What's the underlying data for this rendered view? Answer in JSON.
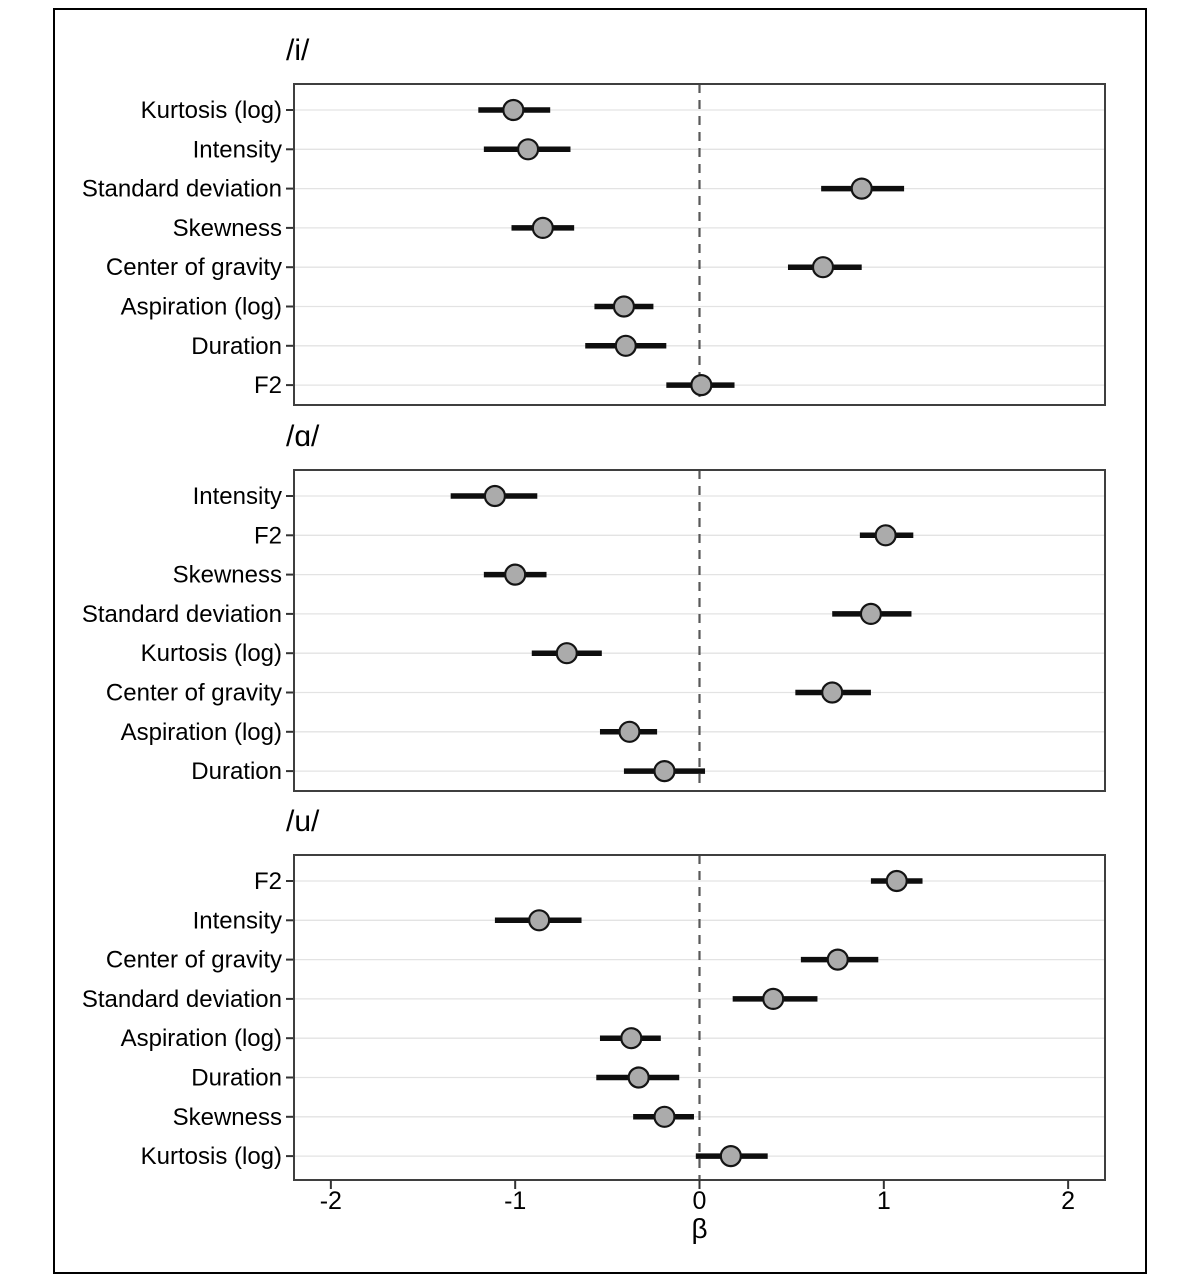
{
  "figure": {
    "xlabel": "β",
    "x_ticks": [
      "-2",
      "-1",
      "0",
      "1",
      "2"
    ],
    "x_tick_values": [
      -2,
      -1,
      0,
      1,
      2
    ],
    "xlim": [
      -2.2,
      2.2
    ],
    "zero_line": 0
  },
  "colors": {
    "background": "#ffffff",
    "outer_border": "#000000",
    "panel_border": "#3f3f3f",
    "gridline": "#e3e3e3",
    "zero_line": "#595959",
    "ci_bar": "#0e0e0e",
    "point_fill": "#ababab",
    "point_stroke": "#141414",
    "axis_tick": "#333333",
    "text": "#000000"
  },
  "chart_data": [
    {
      "type": "scatter",
      "subtype": "dot-with-ci",
      "title": "/i/",
      "xlabel": "β",
      "xlim": [
        -2.2,
        2.2
      ],
      "grid": "horizontal-per-category",
      "legend": "none",
      "categories": [
        "Kurtosis (log)",
        "Intensity",
        "Standard deviation",
        "Skewness",
        "Center of gravity",
        "Aspiration (log)",
        "Duration",
        "F2"
      ],
      "points": [
        {
          "label": "Kurtosis (log)",
          "estimate": -1.01,
          "ci_low": -1.2,
          "ci_high": -0.81
        },
        {
          "label": "Intensity",
          "estimate": -0.93,
          "ci_low": -1.17,
          "ci_high": -0.7
        },
        {
          "label": "Standard deviation",
          "estimate": 0.88,
          "ci_low": 0.66,
          "ci_high": 1.11
        },
        {
          "label": "Skewness",
          "estimate": -0.85,
          "ci_low": -1.02,
          "ci_high": -0.68
        },
        {
          "label": "Center of gravity",
          "estimate": 0.67,
          "ci_low": 0.48,
          "ci_high": 0.88
        },
        {
          "label": "Aspiration (log)",
          "estimate": -0.41,
          "ci_low": -0.57,
          "ci_high": -0.25
        },
        {
          "label": "Duration",
          "estimate": -0.4,
          "ci_low": -0.62,
          "ci_high": -0.18
        },
        {
          "label": "F2",
          "estimate": 0.01,
          "ci_low": -0.18,
          "ci_high": 0.19
        }
      ]
    },
    {
      "type": "scatter",
      "subtype": "dot-with-ci",
      "title": "/ɑ/",
      "xlabel": "β",
      "xlim": [
        -2.2,
        2.2
      ],
      "grid": "horizontal-per-category",
      "legend": "none",
      "categories": [
        "Intensity",
        "F2",
        "Skewness",
        "Standard deviation",
        "Kurtosis (log)",
        "Center of gravity",
        "Aspiration (log)",
        "Duration"
      ],
      "points": [
        {
          "label": "Intensity",
          "estimate": -1.11,
          "ci_low": -1.35,
          "ci_high": -0.88
        },
        {
          "label": "F2",
          "estimate": 1.01,
          "ci_low": 0.87,
          "ci_high": 1.16
        },
        {
          "label": "Skewness",
          "estimate": -1.0,
          "ci_low": -1.17,
          "ci_high": -0.83
        },
        {
          "label": "Standard deviation",
          "estimate": 0.93,
          "ci_low": 0.72,
          "ci_high": 1.15
        },
        {
          "label": "Kurtosis (log)",
          "estimate": -0.72,
          "ci_low": -0.91,
          "ci_high": -0.53
        },
        {
          "label": "Center of gravity",
          "estimate": 0.72,
          "ci_low": 0.52,
          "ci_high": 0.93
        },
        {
          "label": "Aspiration (log)",
          "estimate": -0.38,
          "ci_low": -0.54,
          "ci_high": -0.23
        },
        {
          "label": "Duration",
          "estimate": -0.19,
          "ci_low": -0.41,
          "ci_high": 0.03
        }
      ]
    },
    {
      "type": "scatter",
      "subtype": "dot-with-ci",
      "title": "/u/",
      "xlabel": "β",
      "xlim": [
        -2.2,
        2.2
      ],
      "grid": "horizontal-per-category",
      "legend": "none",
      "categories": [
        "F2",
        "Intensity",
        "Center of gravity",
        "Standard deviation",
        "Aspiration (log)",
        "Duration",
        "Skewness",
        "Kurtosis (log)"
      ],
      "points": [
        {
          "label": "F2",
          "estimate": 1.07,
          "ci_low": 0.93,
          "ci_high": 1.21
        },
        {
          "label": "Intensity",
          "estimate": -0.87,
          "ci_low": -1.11,
          "ci_high": -0.64
        },
        {
          "label": "Center of gravity",
          "estimate": 0.75,
          "ci_low": 0.55,
          "ci_high": 0.97
        },
        {
          "label": "Standard deviation",
          "estimate": 0.4,
          "ci_low": 0.18,
          "ci_high": 0.64
        },
        {
          "label": "Aspiration (log)",
          "estimate": -0.37,
          "ci_low": -0.54,
          "ci_high": -0.21
        },
        {
          "label": "Duration",
          "estimate": -0.33,
          "ci_low": -0.56,
          "ci_high": -0.11
        },
        {
          "label": "Skewness",
          "estimate": -0.19,
          "ci_low": -0.36,
          "ci_high": -0.03
        },
        {
          "label": "Kurtosis (log)",
          "estimate": 0.17,
          "ci_low": -0.02,
          "ci_high": 0.37
        }
      ]
    }
  ]
}
